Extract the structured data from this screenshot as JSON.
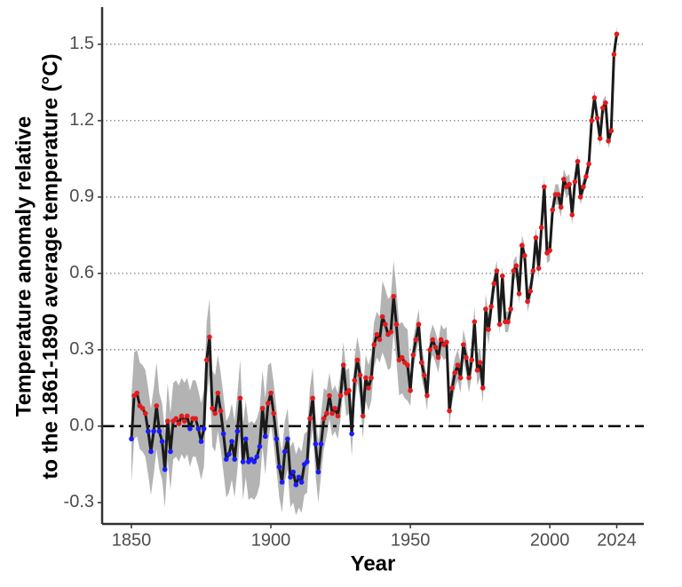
{
  "chart_data": {
    "type": "line",
    "xlabel": "Year",
    "ylabel": [
      "Temperature anomaly relative",
      "to the 1861-1890 average temperature (°C)"
    ],
    "x": [
      1850,
      1851,
      1852,
      1853,
      1854,
      1855,
      1856,
      1857,
      1858,
      1859,
      1860,
      1861,
      1862,
      1863,
      1864,
      1865,
      1866,
      1867,
      1868,
      1869,
      1870,
      1871,
      1872,
      1873,
      1874,
      1875,
      1876,
      1877,
      1878,
      1879,
      1880,
      1881,
      1882,
      1883,
      1884,
      1885,
      1886,
      1887,
      1888,
      1889,
      1890,
      1891,
      1892,
      1893,
      1894,
      1895,
      1896,
      1897,
      1898,
      1899,
      1900,
      1901,
      1902,
      1903,
      1904,
      1905,
      1906,
      1907,
      1908,
      1909,
      1910,
      1911,
      1912,
      1913,
      1914,
      1915,
      1916,
      1917,
      1918,
      1919,
      1920,
      1921,
      1922,
      1923,
      1924,
      1925,
      1926,
      1927,
      1928,
      1929,
      1930,
      1931,
      1932,
      1933,
      1934,
      1935,
      1936,
      1937,
      1938,
      1939,
      1940,
      1941,
      1942,
      1943,
      1944,
      1945,
      1946,
      1947,
      1948,
      1949,
      1950,
      1951,
      1952,
      1953,
      1954,
      1955,
      1956,
      1957,
      1958,
      1959,
      1960,
      1961,
      1962,
      1963,
      1964,
      1965,
      1966,
      1967,
      1968,
      1969,
      1970,
      1971,
      1972,
      1973,
      1974,
      1975,
      1976,
      1977,
      1978,
      1979,
      1980,
      1981,
      1982,
      1983,
      1984,
      1985,
      1986,
      1987,
      1988,
      1989,
      1990,
      1991,
      1992,
      1993,
      1994,
      1995,
      1996,
      1997,
      1998,
      1999,
      2000,
      2001,
      2002,
      2003,
      2004,
      2005,
      2006,
      2007,
      2008,
      2009,
      2010,
      2011,
      2012,
      2013,
      2014,
      2015,
      2016,
      2017,
      2018,
      2019,
      2020,
      2021,
      2022,
      2023,
      2024
    ],
    "values": [
      -0.05,
      0.12,
      0.13,
      0.08,
      0.07,
      0.05,
      -0.02,
      -0.1,
      -0.02,
      0.08,
      -0.02,
      -0.06,
      -0.17,
      0.02,
      -0.1,
      0.02,
      0.03,
      0.01,
      0.04,
      0.02,
      0.04,
      -0.01,
      0.03,
      0.03,
      -0.01,
      -0.06,
      -0.01,
      0.26,
      0.35,
      0.07,
      0.05,
      0.13,
      0.06,
      -0.03,
      -0.13,
      -0.11,
      -0.06,
      -0.13,
      -0.02,
      0.11,
      -0.14,
      -0.05,
      -0.14,
      -0.13,
      -0.14,
      -0.12,
      -0.08,
      0.07,
      -0.04,
      0.09,
      0.13,
      0.05,
      -0.05,
      -0.16,
      -0.22,
      -0.1,
      -0.05,
      -0.2,
      -0.18,
      -0.23,
      -0.2,
      -0.22,
      -0.15,
      -0.14,
      0.03,
      0.11,
      -0.07,
      -0.18,
      -0.07,
      0.03,
      0.05,
      0.12,
      0.05,
      0.07,
      0.04,
      0.12,
      0.24,
      0.13,
      0.14,
      -0.03,
      0.18,
      0.26,
      0.2,
      0.04,
      0.19,
      0.15,
      0.19,
      0.32,
      0.36,
      0.34,
      0.43,
      0.4,
      0.36,
      0.37,
      0.51,
      0.4,
      0.26,
      0.27,
      0.25,
      0.24,
      0.14,
      0.28,
      0.34,
      0.4,
      0.25,
      0.2,
      0.12,
      0.3,
      0.34,
      0.31,
      0.27,
      0.34,
      0.32,
      0.33,
      0.06,
      0.15,
      0.21,
      0.24,
      0.19,
      0.32,
      0.27,
      0.19,
      0.26,
      0.41,
      0.22,
      0.25,
      0.15,
      0.46,
      0.38,
      0.47,
      0.56,
      0.61,
      0.4,
      0.59,
      0.41,
      0.41,
      0.46,
      0.61,
      0.63,
      0.52,
      0.71,
      0.67,
      0.49,
      0.53,
      0.61,
      0.74,
      0.62,
      0.78,
      0.94,
      0.68,
      0.69,
      0.85,
      0.91,
      0.91,
      0.86,
      0.97,
      0.94,
      0.95,
      0.83,
      0.96,
      1.04,
      0.9,
      0.94,
      0.98,
      1.03,
      1.2,
      1.29,
      1.21,
      1.13,
      1.25,
      1.27,
      1.12,
      1.16,
      1.46,
      1.54
    ],
    "uncertainty": [
      0.17,
      0.17,
      0.17,
      0.17,
      0.17,
      0.17,
      0.17,
      0.17,
      0.17,
      0.17,
      0.15,
      0.15,
      0.15,
      0.15,
      0.15,
      0.15,
      0.15,
      0.15,
      0.15,
      0.15,
      0.15,
      0.15,
      0.15,
      0.15,
      0.15,
      0.15,
      0.15,
      0.15,
      0.15,
      0.15,
      0.15,
      0.15,
      0.15,
      0.15,
      0.15,
      0.15,
      0.15,
      0.15,
      0.15,
      0.15,
      0.15,
      0.15,
      0.15,
      0.15,
      0.15,
      0.15,
      0.15,
      0.15,
      0.15,
      0.15,
      0.12,
      0.12,
      0.12,
      0.12,
      0.12,
      0.12,
      0.12,
      0.12,
      0.12,
      0.12,
      0.12,
      0.12,
      0.12,
      0.12,
      0.12,
      0.12,
      0.12,
      0.12,
      0.12,
      0.12,
      0.09,
      0.09,
      0.09,
      0.09,
      0.09,
      0.09,
      0.09,
      0.09,
      0.09,
      0.09,
      0.09,
      0.09,
      0.09,
      0.09,
      0.09,
      0.09,
      0.09,
      0.09,
      0.09,
      0.09,
      0.14,
      0.14,
      0.14,
      0.14,
      0.14,
      0.14,
      0.14,
      0.14,
      0.14,
      0.14,
      0.06,
      0.06,
      0.06,
      0.06,
      0.06,
      0.06,
      0.06,
      0.06,
      0.06,
      0.06,
      0.06,
      0.06,
      0.06,
      0.06,
      0.06,
      0.06,
      0.06,
      0.06,
      0.06,
      0.06,
      0.06,
      0.06,
      0.06,
      0.06,
      0.06,
      0.06,
      0.06,
      0.06,
      0.06,
      0.06,
      0.04,
      0.04,
      0.04,
      0.04,
      0.04,
      0.04,
      0.04,
      0.04,
      0.04,
      0.04,
      0.04,
      0.04,
      0.04,
      0.04,
      0.04,
      0.04,
      0.04,
      0.04,
      0.04,
      0.04,
      0.04,
      0.04,
      0.04,
      0.04,
      0.04,
      0.04,
      0.04,
      0.04,
      0.04,
      0.04,
      0.03,
      0.03,
      0.03,
      0.03,
      0.03,
      0.03,
      0.03,
      0.03,
      0.03,
      0.03,
      0.03,
      0.03,
      0.03,
      0.03,
      0.03
    ],
    "color": "#1a1a1a",
    "band_color": "#b3b3b3",
    "positive_color": "#e41a1c",
    "negative_color": "#1a1aff",
    "hline": 0,
    "xlim": [
      1839.5,
      2033.7
    ],
    "xticks": [
      1850,
      1900,
      1950,
      2000,
      2024
    ],
    "ylim": [
      -0.384,
      1.646
    ],
    "yticks": [
      -0.3,
      {
        "value": 0,
        "label": "0.0"
      },
      0.3,
      0.6,
      0.9,
      1.2,
      1.5
    ],
    "grid": true
  }
}
